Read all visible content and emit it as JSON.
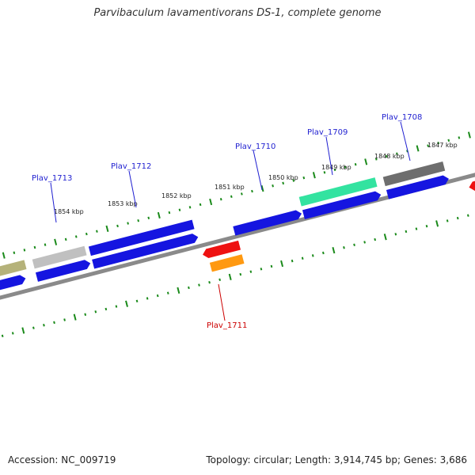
{
  "title": "Parvibaculum lavamentivorans DS-1, complete genome",
  "footer": {
    "accession": "Accession: NC_009719",
    "summary": "Topology: circular; Length: 3,914,745 bp; Genes: 3,686"
  },
  "kbp_labels": [
    "1854 kbp",
    "1853 kbp",
    "1852 kbp",
    "1851 kbp",
    "1850 kbp",
    "1849 kbp",
    "1848 kbp",
    "1847 kbp"
  ],
  "gene_labels": [
    {
      "name": "Plav_1713",
      "color": "#1f1fd0"
    },
    {
      "name": "Plav_1712",
      "color": "#1f1fd0"
    },
    {
      "name": "Plav_1710",
      "color": "#1f1fd0"
    },
    {
      "name": "Plav_1709",
      "color": "#1f1fd0"
    },
    {
      "name": "Plav_1708",
      "color": "#1f1fd0"
    },
    {
      "name": "Plav_1711",
      "color": "#cc0000"
    }
  ],
  "colors": {
    "backbone": "#8a8a8a",
    "ticks": "#1a8a1a",
    "cds_forward": "#1515e0",
    "cds_reverse": "#1515e0",
    "gray_feature": "#6e6e6e",
    "light_gray_feature": "#c0c0c0",
    "olive_feature": "#b5b27a",
    "green_feature": "#33e3a0",
    "red_feature": "#ee1111",
    "orange_feature": "#ff9911"
  }
}
